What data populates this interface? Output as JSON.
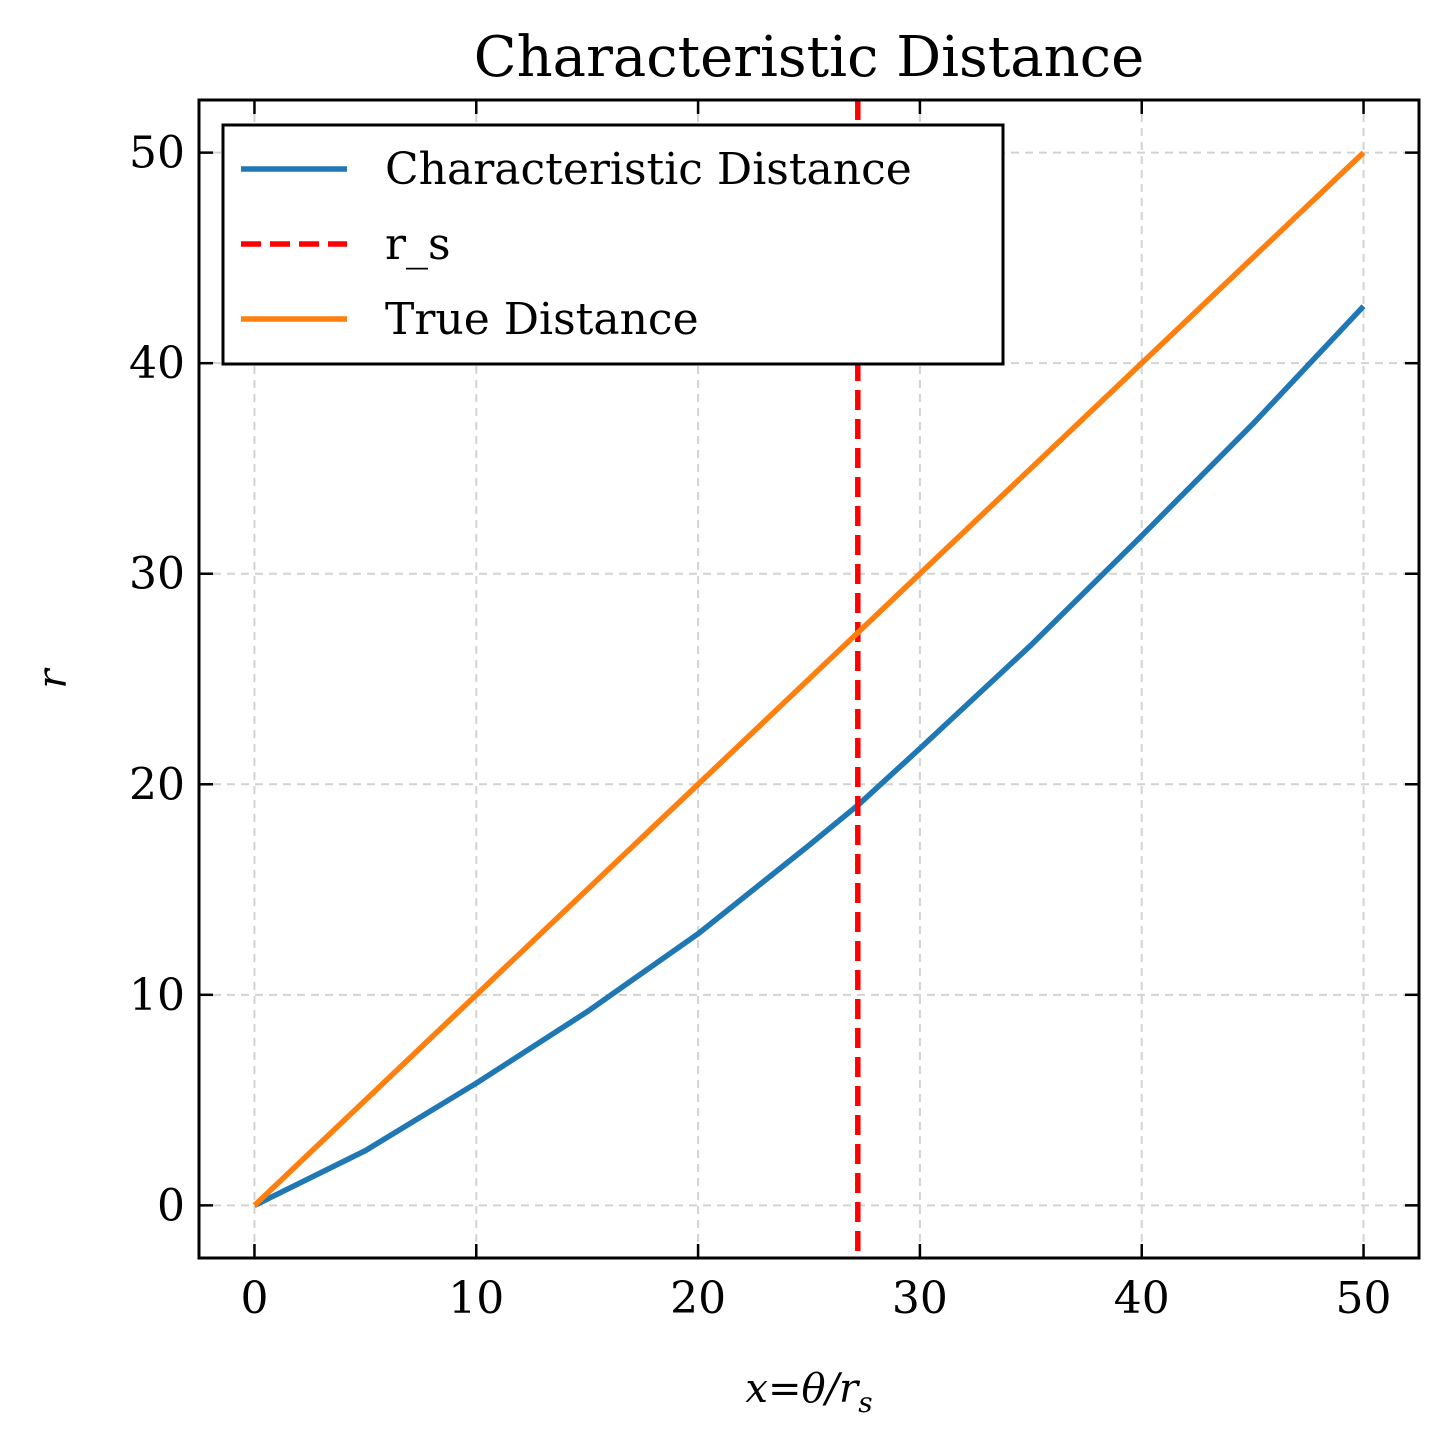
{
  "chart_data": {
    "type": "line",
    "title": "Characteristic Distance",
    "xlabel": "x=θ/r",
    "xlabel_sub": "s",
    "ylabel": "r",
    "xlim": [
      -2.5,
      52.5
    ],
    "ylim": [
      -2.5,
      52.5
    ],
    "xticks": [
      0,
      10,
      20,
      30,
      40,
      50
    ],
    "yticks": [
      0,
      10,
      20,
      30,
      40,
      50
    ],
    "grid": true,
    "legend_position": "top-left",
    "series": [
      {
        "name": "Characteristic Distance",
        "color": "#1f77b4",
        "style": "solid",
        "x": [
          0,
          5,
          10,
          15,
          20,
          25,
          27.2,
          30,
          35,
          40,
          45,
          50
        ],
        "y": [
          0,
          2.6,
          5.8,
          9.2,
          12.9,
          17.1,
          19.0,
          21.7,
          26.6,
          31.8,
          37.1,
          42.7
        ]
      },
      {
        "name": "r_s",
        "color": "#ff0000",
        "style": "dashed",
        "vline": 27.2
      },
      {
        "name": "True Distance",
        "color": "#ff7f0e",
        "style": "solid",
        "x": [
          0,
          50
        ],
        "y": [
          0,
          50
        ]
      }
    ]
  }
}
